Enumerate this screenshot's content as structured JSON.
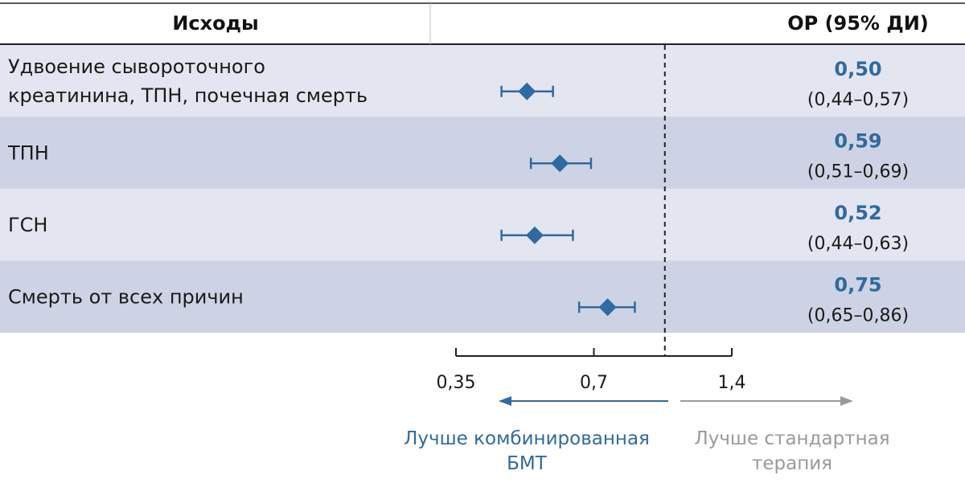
{
  "colors": {
    "accent": "#2f6aa0",
    "right_arrow": "#9a9a9a",
    "row_light": "#e3e6f0",
    "row_dark": "#cdd3e4"
  },
  "header": {
    "outcomes": "Исходы",
    "hr_ci": "ОР (95% ДИ)"
  },
  "chart_data": {
    "type": "forest",
    "x_scale": "log",
    "xlim": [
      0.35,
      1.4
    ],
    "xticks": [
      0.35,
      0.7,
      1.4
    ],
    "xtick_labels": [
      "0,35",
      "0,7",
      "1,4"
    ],
    "reference_line": 1.0,
    "rows": [
      {
        "label_lines": [
          "Удвоение сывороточного",
          "креатинина, ТПН, почечная смерть"
        ],
        "estimate": 0.5,
        "lower": 0.44,
        "upper": 0.57,
        "estimate_text": "0,50",
        "ci_text": "(0,44–0,57)"
      },
      {
        "label_lines": [
          "ТПН"
        ],
        "estimate": 0.59,
        "lower": 0.51,
        "upper": 0.69,
        "estimate_text": "0,59",
        "ci_text": "(0,51–0,69)"
      },
      {
        "label_lines": [
          "ГСН"
        ],
        "estimate": 0.52,
        "lower": 0.44,
        "upper": 0.63,
        "estimate_text": "0,52",
        "ci_text": "(0,44–0,63)"
      },
      {
        "label_lines": [
          "Смерть от всех причин"
        ],
        "estimate": 0.75,
        "lower": 0.65,
        "upper": 0.86,
        "estimate_text": "0,75",
        "ci_text": "(0,65–0,86)"
      }
    ],
    "direction_left": [
      "Лучше комбинированная",
      "БМТ"
    ],
    "direction_right": [
      "Лучше стандартная",
      "терапия"
    ]
  }
}
